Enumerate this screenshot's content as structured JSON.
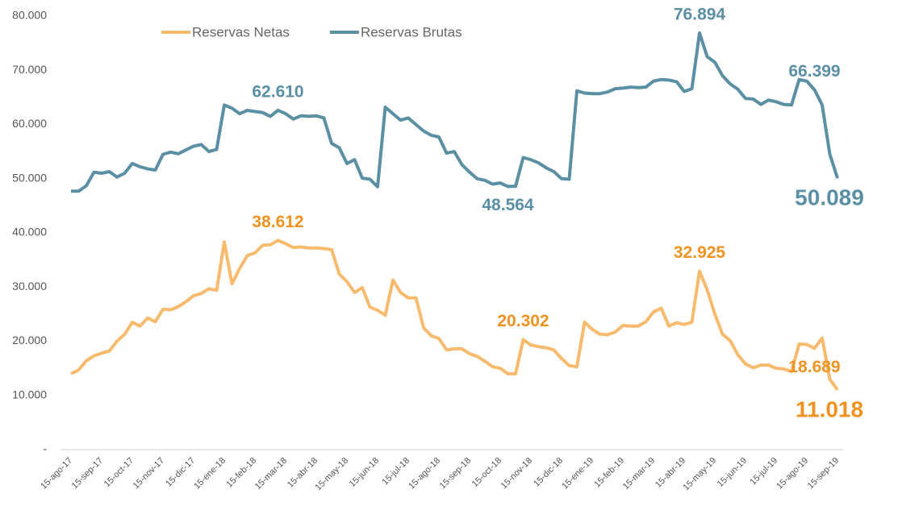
{
  "chart_data": {
    "type": "line",
    "categories": [
      "15-ago-17",
      null,
      null,
      null,
      "15-sep-17",
      null,
      null,
      null,
      "15-oct-17",
      null,
      null,
      null,
      "15-nov-17",
      null,
      null,
      null,
      "15-dic-17",
      null,
      null,
      null,
      "15-ene-18",
      null,
      null,
      null,
      "15-feb-18",
      null,
      null,
      null,
      "15-mar-18",
      null,
      null,
      null,
      "15-abr-18",
      null,
      null,
      null,
      "15-may-18",
      null,
      null,
      null,
      "15-jun-18",
      null,
      null,
      null,
      "15-jul-18",
      null,
      null,
      null,
      "15-ago-18",
      null,
      null,
      null,
      "15-sep-18",
      null,
      null,
      null,
      "15-oct-18",
      null,
      null,
      null,
      "15-nov-18",
      null,
      null,
      null,
      "15-dic-18",
      null,
      null,
      null,
      "15-ene-19",
      null,
      null,
      null,
      "15-feb-19",
      null,
      null,
      null,
      "15-mar-19",
      null,
      null,
      null,
      "15-abr-19",
      null,
      null,
      null,
      "15-may-19",
      null,
      null,
      null,
      "15-jun-19",
      null,
      null,
      null,
      "15-jul-19",
      null,
      null,
      null,
      "15-ago-19",
      null,
      null,
      null,
      "15-sep-19"
    ],
    "series": [
      {
        "name": "Reservas Netas",
        "color": "#f8bb6e",
        "label_color": "#f0921f",
        "values": [
          14000,
          14700,
          16400,
          17300,
          17800,
          18200,
          20000,
          21300,
          23500,
          22800,
          24300,
          23600,
          25900,
          25800,
          26400,
          27300,
          28400,
          28800,
          29700,
          29400,
          38300,
          30600,
          33400,
          35800,
          36300,
          37700,
          37800,
          38612,
          38000,
          37300,
          37400,
          37200,
          37200,
          37100,
          36900,
          32400,
          31000,
          29000,
          29900,
          26300,
          25700,
          24800,
          31300,
          29000,
          28000,
          28000,
          22500,
          21000,
          20500,
          18400,
          18600,
          18600,
          17700,
          17200,
          16300,
          15300,
          15000,
          14000,
          14000,
          20302,
          19300,
          19000,
          18800,
          18400,
          16800,
          15500,
          15300,
          23500,
          22200,
          21300,
          21200,
          21700,
          22900,
          22800,
          22800,
          23600,
          25400,
          26100,
          22800,
          23400,
          23100,
          23500,
          32925,
          29500,
          25000,
          21300,
          20100,
          17500,
          15800,
          15100,
          15600,
          15600,
          15000,
          14900,
          14400,
          19500,
          19400,
          18689,
          20600,
          13000,
          11018
        ],
        "value_labels": [
          null,
          null,
          null,
          null,
          null,
          null,
          null,
          null,
          null,
          null,
          null,
          null,
          null,
          null,
          null,
          null,
          null,
          null,
          null,
          null,
          null,
          null,
          null,
          null,
          null,
          null,
          null,
          "38.612",
          null,
          null,
          null,
          null,
          null,
          null,
          null,
          null,
          null,
          null,
          null,
          null,
          null,
          null,
          null,
          null,
          null,
          null,
          null,
          null,
          null,
          null,
          null,
          null,
          null,
          null,
          null,
          null,
          null,
          null,
          null,
          "20.302",
          null,
          null,
          null,
          null,
          null,
          null,
          null,
          null,
          null,
          null,
          null,
          null,
          null,
          null,
          null,
          null,
          null,
          null,
          null,
          null,
          null,
          null,
          "32.925",
          null,
          null,
          null,
          null,
          null,
          null,
          null,
          null,
          null,
          null,
          null,
          null,
          null,
          null,
          "18.689",
          null,
          null,
          "11.018"
        ]
      },
      {
        "name": "Reservas Brutas",
        "color": "#5b8fa3",
        "label_color": "#5b8fa6",
        "values": [
          47700,
          47700,
          48700,
          51200,
          51000,
          51300,
          50300,
          51000,
          52800,
          52200,
          51800,
          51600,
          54500,
          54900,
          54600,
          55300,
          56000,
          56300,
          55000,
          55400,
          63600,
          63000,
          62000,
          62600,
          62400,
          62200,
          61500,
          62610,
          62000,
          61000,
          61600,
          61500,
          61600,
          61200,
          56500,
          55700,
          52800,
          53500,
          50100,
          49900,
          48500,
          63200,
          62000,
          60800,
          61200,
          60000,
          58800,
          58000,
          57700,
          54700,
          55000,
          52600,
          51200,
          50000,
          49700,
          49000,
          49200,
          48564,
          48600,
          53900,
          53500,
          52900,
          52000,
          51300,
          50000,
          49900,
          66200,
          65800,
          65700,
          65700,
          66000,
          66600,
          66700,
          66900,
          66800,
          66900,
          68000,
          68300,
          68200,
          67900,
          66100,
          66600,
          76894,
          72500,
          71500,
          69000,
          67500,
          66500,
          64800,
          64700,
          63700,
          64500,
          64200,
          63700,
          63600,
          68300,
          68000,
          66399,
          63600,
          54500,
          50089
        ],
        "value_labels": [
          null,
          null,
          null,
          null,
          null,
          null,
          null,
          null,
          null,
          null,
          null,
          null,
          null,
          null,
          null,
          null,
          null,
          null,
          null,
          null,
          null,
          null,
          null,
          null,
          null,
          null,
          null,
          "62.610",
          null,
          null,
          null,
          null,
          null,
          null,
          null,
          null,
          null,
          null,
          null,
          null,
          null,
          null,
          null,
          null,
          null,
          null,
          null,
          null,
          null,
          null,
          null,
          null,
          null,
          null,
          null,
          null,
          null,
          "48.564",
          null,
          null,
          null,
          null,
          null,
          null,
          null,
          null,
          null,
          null,
          null,
          null,
          null,
          null,
          null,
          null,
          null,
          null,
          null,
          null,
          null,
          null,
          null,
          null,
          "76.894",
          null,
          null,
          null,
          null,
          null,
          null,
          null,
          null,
          null,
          null,
          null,
          null,
          null,
          null,
          "66.399",
          null,
          null,
          "50.089"
        ]
      }
    ],
    "ylim": [
      0,
      80000
    ],
    "yticks": [
      {
        "value": 0,
        "label": "-"
      },
      {
        "value": 10000,
        "label": "10.000"
      },
      {
        "value": 20000,
        "label": "20.000"
      },
      {
        "value": 30000,
        "label": "30.000"
      },
      {
        "value": 40000,
        "label": "40.000"
      },
      {
        "value": 50000,
        "label": "50.000"
      },
      {
        "value": 60000,
        "label": "60.000"
      },
      {
        "value": 70000,
        "label": "70.000"
      },
      {
        "value": 80000,
        "label": "80.000"
      }
    ],
    "grid": false,
    "legend": "top"
  }
}
